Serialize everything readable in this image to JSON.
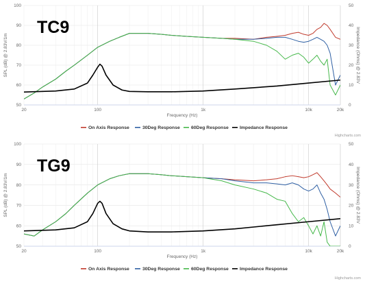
{
  "colors": {
    "on_axis": "#c0392b",
    "deg30": "#2e5fa3",
    "deg60": "#45b84a",
    "impedance": "#000000",
    "grid": "#e6e6e6"
  },
  "credit": "Highcharts.com",
  "chart_data": [
    {
      "type": "line",
      "title": "TC9",
      "xlabel": "Frequency (Hz)",
      "ylabel": "SPL (dB) @ 2.83V/1m",
      "y2label": "Impedance (Ohms) @ 2.83V",
      "xscale": "log",
      "xlim": [
        20,
        20000
      ],
      "ylim": [
        50,
        100
      ],
      "y2lim": [
        0,
        50
      ],
      "xticks": [
        20,
        100,
        1000,
        10000,
        20000
      ],
      "xtick_labels": [
        "20",
        "100",
        "1k",
        "10k",
        "20k"
      ],
      "yticks": [
        50,
        60,
        70,
        80,
        90,
        100
      ],
      "y2ticks": [
        0,
        10,
        20,
        30,
        40,
        50
      ],
      "grid": true,
      "legend_position": "bottom",
      "series": [
        {
          "name": "On Axis Response",
          "axis": "left",
          "x": [
            20,
            25,
            30,
            40,
            50,
            60,
            80,
            100,
            130,
            160,
            200,
            300,
            400,
            500,
            700,
            1000,
            1500,
            2000,
            3000,
            4000,
            5000,
            6000,
            7000,
            8000,
            9000,
            10000,
            11000,
            12000,
            13000,
            14000,
            15000,
            16000,
            18000,
            20000
          ],
          "y": [
            53,
            56,
            59,
            63,
            67,
            70,
            75,
            79,
            82,
            84,
            86,
            86,
            85.5,
            85,
            84.5,
            84,
            83.5,
            83.5,
            83,
            84,
            84.5,
            85,
            86,
            86.5,
            85.5,
            85,
            86,
            88,
            89,
            91,
            90,
            88,
            84,
            83
          ]
        },
        {
          "name": "30Deg Response",
          "axis": "left",
          "x": [
            20,
            25,
            30,
            40,
            50,
            60,
            80,
            100,
            130,
            160,
            200,
            300,
            400,
            500,
            700,
            1000,
            1500,
            2000,
            3000,
            4000,
            5000,
            6000,
            7000,
            8000,
            9000,
            10000,
            11000,
            12000,
            13000,
            14000,
            15000,
            16000,
            18000,
            20000
          ],
          "y": [
            53,
            56,
            59,
            63,
            67,
            70,
            75,
            79,
            82,
            84,
            86,
            86,
            85.5,
            85,
            84.5,
            84,
            83.5,
            83,
            83,
            83.5,
            84,
            84,
            83,
            82,
            81.5,
            82,
            83,
            84,
            83,
            82,
            80,
            76,
            60,
            65
          ]
        },
        {
          "name": "60Deg Response",
          "axis": "left",
          "x": [
            20,
            25,
            30,
            40,
            50,
            60,
            80,
            100,
            130,
            160,
            200,
            300,
            400,
            500,
            700,
            1000,
            1500,
            2000,
            3000,
            4000,
            5000,
            6000,
            7000,
            8000,
            9000,
            10000,
            11000,
            12000,
            13000,
            14000,
            15000,
            16000,
            18000,
            20000
          ],
          "y": [
            53,
            56,
            59,
            63,
            67,
            70,
            75,
            79,
            82,
            84,
            86,
            86,
            85.5,
            85,
            84.5,
            84,
            83.5,
            83,
            82,
            80,
            77,
            73,
            75,
            76,
            74,
            71,
            73,
            75,
            72,
            70,
            73,
            60,
            55,
            60
          ]
        },
        {
          "name": "Impedance Response",
          "axis": "right",
          "x": [
            20,
            40,
            60,
            80,
            90,
            100,
            105,
            110,
            120,
            140,
            170,
            200,
            300,
            500,
            1000,
            2000,
            5000,
            10000,
            20000
          ],
          "y": [
            6.5,
            7,
            8,
            11,
            15,
            19,
            20.5,
            19.5,
            15,
            10,
            7.5,
            6.8,
            6.6,
            6.6,
            7,
            8,
            9.5,
            11,
            12.5
          ]
        }
      ]
    },
    {
      "type": "line",
      "title": "TG9",
      "xlabel": "Frequency (Hz)",
      "ylabel": "SPL (dB) @ 2.83V/1m",
      "y2label": "Impedance (Ohms) @ 2.83V",
      "xscale": "log",
      "xlim": [
        20,
        20000
      ],
      "ylim": [
        50,
        100
      ],
      "y2lim": [
        0,
        50
      ],
      "xticks": [
        20,
        100,
        1000,
        10000,
        20000
      ],
      "xtick_labels": [
        "20",
        "100",
        "1k",
        "10k",
        "20k"
      ],
      "yticks": [
        50,
        60,
        70,
        80,
        90,
        100
      ],
      "y2ticks": [
        0,
        10,
        20,
        30,
        40,
        50
      ],
      "grid": true,
      "legend_position": "bottom",
      "series": [
        {
          "name": "On Axis Response",
          "axis": "left",
          "x": [
            20,
            25,
            30,
            40,
            50,
            60,
            80,
            100,
            130,
            160,
            200,
            300,
            400,
            500,
            700,
            1000,
            1500,
            2000,
            3000,
            4000,
            5000,
            6000,
            7000,
            8000,
            9000,
            10000,
            11000,
            12000,
            13000,
            14000,
            15000,
            16000,
            18000,
            20000
          ],
          "y": [
            56,
            55,
            58,
            62,
            66,
            70,
            76,
            80,
            83,
            84.5,
            85.5,
            85.5,
            85,
            84.5,
            84,
            83.5,
            83,
            82.5,
            82,
            82.5,
            83,
            84,
            84.5,
            84,
            83.5,
            84,
            85,
            86,
            84,
            82,
            80,
            78,
            76,
            74
          ]
        },
        {
          "name": "30Deg Response",
          "axis": "left",
          "x": [
            20,
            25,
            30,
            40,
            50,
            60,
            80,
            100,
            130,
            160,
            200,
            300,
            400,
            500,
            700,
            1000,
            1500,
            2000,
            3000,
            4000,
            5000,
            6000,
            7000,
            8000,
            9000,
            10000,
            11000,
            12000,
            13000,
            14000,
            15000,
            16000,
            18000,
            20000
          ],
          "y": [
            56,
            55,
            58,
            62,
            66,
            70,
            76,
            80,
            83,
            84.5,
            85.5,
            85.5,
            85,
            84.5,
            84,
            83.5,
            83,
            82,
            81,
            81,
            80.5,
            80,
            81,
            80,
            78,
            77,
            78,
            80,
            76,
            73,
            68,
            62,
            55,
            60
          ]
        },
        {
          "name": "60Deg Response",
          "axis": "left",
          "x": [
            20,
            25,
            30,
            40,
            50,
            60,
            80,
            100,
            130,
            160,
            200,
            300,
            400,
            500,
            700,
            1000,
            1500,
            2000,
            3000,
            4000,
            5000,
            6000,
            7000,
            8000,
            9000,
            10000,
            11000,
            12000,
            13000,
            14000,
            15000,
            16000,
            18000,
            20000
          ],
          "y": [
            56,
            55,
            58,
            62,
            66,
            70,
            76,
            80,
            83,
            84.5,
            85.5,
            85.5,
            85,
            84.5,
            84,
            83.5,
            82,
            80,
            78,
            76,
            73,
            72,
            66,
            62,
            64,
            60,
            56,
            60,
            55,
            62,
            52,
            50,
            50,
            50
          ]
        },
        {
          "name": "Impedance Response",
          "axis": "right",
          "x": [
            20,
            40,
            60,
            80,
            90,
            100,
            105,
            110,
            120,
            140,
            170,
            200,
            300,
            500,
            1000,
            2000,
            5000,
            10000,
            20000
          ],
          "y": [
            7.5,
            8,
            9,
            12,
            16,
            21,
            22,
            21,
            16,
            11,
            8.5,
            7.5,
            7,
            7,
            7.5,
            8.5,
            10.5,
            12,
            13.5
          ]
        }
      ]
    }
  ]
}
